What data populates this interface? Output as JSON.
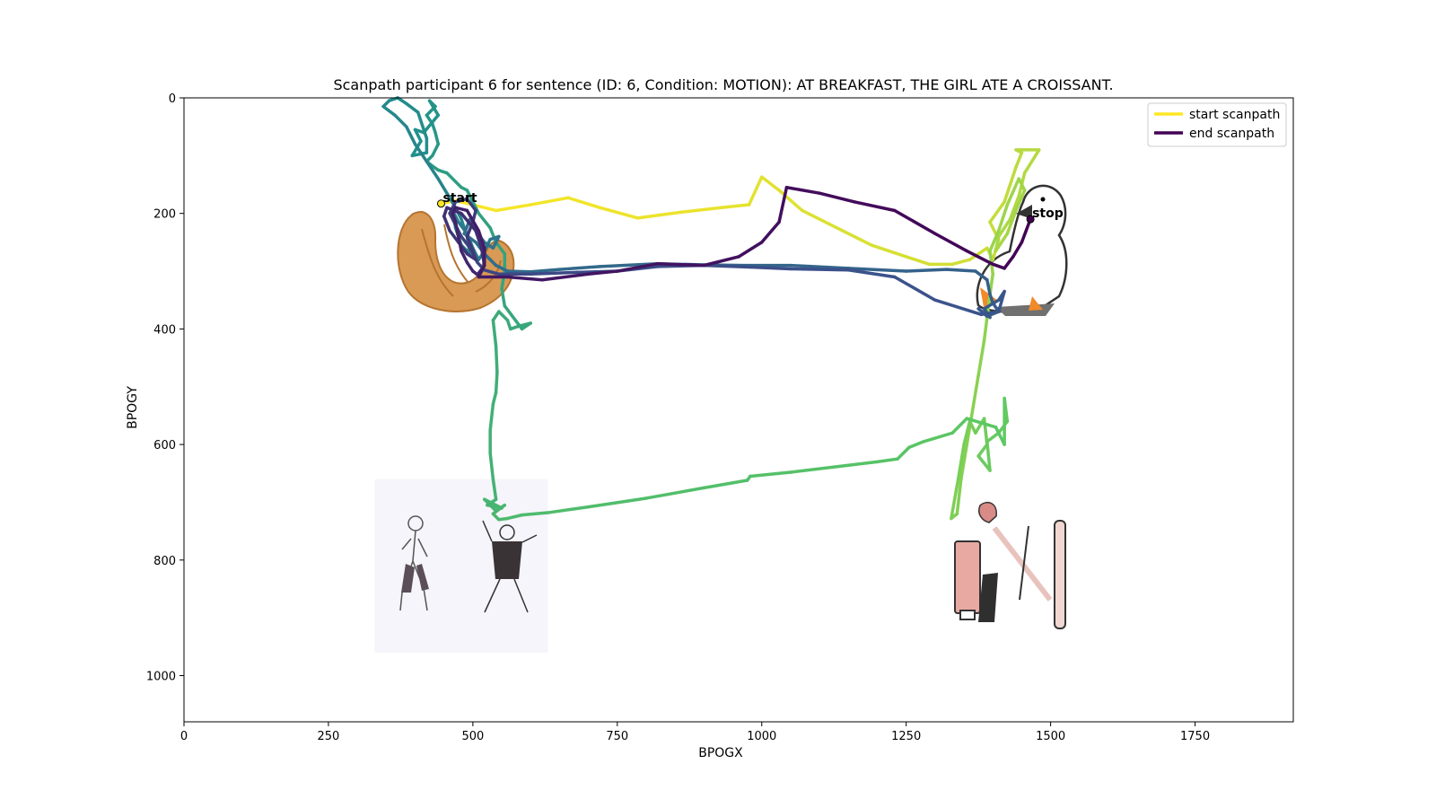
{
  "chart_data": {
    "type": "line",
    "title": "Scanpath participant 6 for sentence (ID: 6, Condition: MOTION):  AT BREAKFAST, THE GIRL ATE A CROISSANT.",
    "xlabel": "BPOGX",
    "ylabel": "BPOGY",
    "xlim": [
      0,
      1920
    ],
    "ylim": [
      1080,
      0
    ],
    "y_inverted": true,
    "xticks": [
      0,
      250,
      500,
      750,
      1000,
      1250,
      1500,
      1750
    ],
    "yticks": [
      0,
      200,
      400,
      600,
      800,
      1000
    ],
    "grid": false,
    "colormap": "viridis (yellow = start, purple = end)",
    "legend": {
      "placement": "upper right",
      "entries": [
        {
          "label": "start scanpath",
          "color": "#fde725"
        },
        {
          "label": "end scanpath",
          "color": "#440154"
        }
      ]
    },
    "annotations": [
      {
        "text": "start",
        "x": 445,
        "y": 183
      },
      {
        "text": "stop",
        "x": 1465,
        "y": 210
      }
    ],
    "stimuli": [
      {
        "name": "croissant",
        "x": [
          380,
          560
        ],
        "y": [
          185,
          370
        ]
      },
      {
        "name": "duck",
        "x": [
          1370,
          1570
        ],
        "y": [
          140,
          370
        ]
      },
      {
        "name": "dancers",
        "x": [
          330,
          630
        ],
        "y": [
          660,
          960
        ]
      },
      {
        "name": "makeup",
        "x": [
          1320,
          1620
        ],
        "y": [
          660,
          960
        ]
      }
    ],
    "scanpath": [
      [
        445,
        183
      ],
      [
        470,
        178
      ],
      [
        500,
        185
      ],
      [
        540,
        195
      ],
      [
        600,
        185
      ],
      [
        665,
        173
      ],
      [
        720,
        190
      ],
      [
        785,
        208
      ],
      [
        860,
        198
      ],
      [
        930,
        190
      ],
      [
        978,
        185
      ],
      [
        1000,
        137
      ],
      [
        1030,
        160
      ],
      [
        1070,
        195
      ],
      [
        1130,
        225
      ],
      [
        1190,
        255
      ],
      [
        1250,
        275
      ],
      [
        1290,
        288
      ],
      [
        1330,
        288
      ],
      [
        1360,
        280
      ],
      [
        1390,
        260
      ],
      [
        1400,
        280
      ],
      [
        1410,
        245
      ],
      [
        1395,
        215
      ],
      [
        1420,
        180
      ],
      [
        1430,
        150
      ],
      [
        1440,
        120
      ],
      [
        1450,
        95
      ],
      [
        1440,
        90
      ],
      [
        1480,
        90
      ],
      [
        1455,
        130
      ],
      [
        1445,
        170
      ],
      [
        1430,
        210
      ],
      [
        1410,
        240
      ],
      [
        1405,
        265
      ],
      [
        1425,
        235
      ],
      [
        1440,
        195
      ],
      [
        1455,
        160
      ],
      [
        1445,
        140
      ],
      [
        1425,
        185
      ],
      [
        1410,
        230
      ],
      [
        1395,
        265
      ],
      [
        1400,
        305
      ],
      [
        1395,
        340
      ],
      [
        1390,
        380
      ],
      [
        1385,
        420
      ],
      [
        1375,
        480
      ],
      [
        1365,
        540
      ],
      [
        1355,
        600
      ],
      [
        1345,
        660
      ],
      [
        1338,
        720
      ],
      [
        1328,
        728
      ],
      [
        1340,
        660
      ],
      [
        1350,
        600
      ],
      [
        1360,
        560
      ],
      [
        1370,
        580
      ],
      [
        1385,
        555
      ],
      [
        1390,
        600
      ],
      [
        1375,
        620
      ],
      [
        1395,
        645
      ],
      [
        1390,
        595
      ],
      [
        1410,
        580
      ],
      [
        1425,
        560
      ],
      [
        1420,
        520
      ],
      [
        1420,
        600
      ],
      [
        1405,
        570
      ],
      [
        1355,
        555
      ],
      [
        1330,
        580
      ],
      [
        1280,
        595
      ],
      [
        1255,
        605
      ],
      [
        1235,
        625
      ],
      [
        1200,
        630
      ],
      [
        1150,
        636
      ],
      [
        1050,
        648
      ],
      [
        980,
        655
      ],
      [
        975,
        662
      ],
      [
        900,
        675
      ],
      [
        800,
        693
      ],
      [
        700,
        708
      ],
      [
        630,
        718
      ],
      [
        585,
        722
      ],
      [
        560,
        728
      ],
      [
        545,
        730
      ],
      [
        535,
        720
      ],
      [
        555,
        705
      ],
      [
        540,
        715
      ],
      [
        520,
        695
      ],
      [
        550,
        710
      ],
      [
        525,
        705
      ],
      [
        540,
        695
      ],
      [
        535,
        660
      ],
      [
        530,
        615
      ],
      [
        530,
        575
      ],
      [
        535,
        530
      ],
      [
        540,
        510
      ],
      [
        542,
        475
      ],
      [
        540,
        430
      ],
      [
        535,
        385
      ],
      [
        545,
        370
      ],
      [
        560,
        385
      ],
      [
        565,
        400
      ],
      [
        580,
        395
      ],
      [
        600,
        390
      ],
      [
        585,
        400
      ],
      [
        555,
        360
      ],
      [
        550,
        330
      ],
      [
        555,
        300
      ],
      [
        555,
        270
      ],
      [
        540,
        250
      ],
      [
        530,
        225
      ],
      [
        510,
        200
      ],
      [
        490,
        160
      ],
      [
        480,
        155
      ],
      [
        470,
        145
      ],
      [
        455,
        130
      ],
      [
        440,
        125
      ],
      [
        430,
        118
      ],
      [
        420,
        110
      ],
      [
        430,
        100
      ],
      [
        440,
        80
      ],
      [
        435,
        60
      ],
      [
        430,
        45
      ],
      [
        420,
        30
      ],
      [
        435,
        15
      ],
      [
        425,
        5
      ],
      [
        440,
        30
      ],
      [
        415,
        60
      ],
      [
        400,
        55
      ],
      [
        410,
        75
      ],
      [
        395,
        100
      ],
      [
        420,
        95
      ],
      [
        420,
        70
      ],
      [
        405,
        25
      ],
      [
        385,
        10
      ],
      [
        370,
        0
      ],
      [
        355,
        5
      ],
      [
        345,
        15
      ],
      [
        365,
        30
      ],
      [
        385,
        50
      ],
      [
        400,
        80
      ],
      [
        420,
        110
      ],
      [
        440,
        140
      ],
      [
        455,
        165
      ],
      [
        470,
        190
      ],
      [
        480,
        210
      ],
      [
        490,
        240
      ],
      [
        495,
        270
      ],
      [
        480,
        255
      ],
      [
        470,
        225
      ],
      [
        465,
        195
      ],
      [
        475,
        215
      ],
      [
        490,
        235
      ],
      [
        500,
        260
      ],
      [
        510,
        280
      ],
      [
        520,
        265
      ],
      [
        530,
        245
      ],
      [
        545,
        240
      ],
      [
        535,
        260
      ],
      [
        520,
        250
      ],
      [
        505,
        230
      ],
      [
        495,
        210
      ],
      [
        485,
        235
      ],
      [
        505,
        250
      ],
      [
        520,
        270
      ],
      [
        540,
        290
      ],
      [
        560,
        300
      ],
      [
        600,
        301
      ],
      [
        650,
        297
      ],
      [
        720,
        292
      ],
      [
        820,
        287
      ],
      [
        900,
        289
      ],
      [
        970,
        290
      ],
      [
        1050,
        290
      ],
      [
        1150,
        295
      ],
      [
        1250,
        300
      ],
      [
        1320,
        297
      ],
      [
        1370,
        300
      ],
      [
        1390,
        315
      ],
      [
        1395,
        340
      ],
      [
        1400,
        355
      ],
      [
        1410,
        370
      ],
      [
        1390,
        378
      ],
      [
        1375,
        365
      ],
      [
        1395,
        380
      ],
      [
        1385,
        365
      ],
      [
        1410,
        350
      ],
      [
        1420,
        335
      ],
      [
        1410,
        370
      ],
      [
        1380,
        375
      ],
      [
        1300,
        350
      ],
      [
        1230,
        310
      ],
      [
        1150,
        298
      ],
      [
        1050,
        296
      ],
      [
        980,
        293
      ],
      [
        900,
        290
      ],
      [
        820,
        292
      ],
      [
        750,
        300
      ],
      [
        680,
        302
      ],
      [
        600,
        305
      ],
      [
        545,
        305
      ],
      [
        520,
        298
      ],
      [
        508,
        285
      ],
      [
        495,
        260
      ],
      [
        480,
        240
      ],
      [
        470,
        220
      ],
      [
        460,
        200
      ],
      [
        470,
        180
      ],
      [
        490,
        175
      ],
      [
        505,
        195
      ],
      [
        500,
        215
      ],
      [
        490,
        240
      ],
      [
        500,
        265
      ],
      [
        505,
        280
      ],
      [
        490,
        270
      ],
      [
        475,
        250
      ],
      [
        460,
        230
      ],
      [
        450,
        205
      ],
      [
        455,
        190
      ],
      [
        480,
        200
      ],
      [
        505,
        230
      ],
      [
        515,
        260
      ],
      [
        520,
        290
      ],
      [
        508,
        306
      ],
      [
        500,
        300
      ],
      [
        490,
        285
      ],
      [
        480,
        265
      ],
      [
        475,
        240
      ],
      [
        470,
        215
      ],
      [
        465,
        200
      ],
      [
        470,
        190
      ],
      [
        490,
        195
      ],
      [
        510,
        230
      ],
      [
        520,
        260
      ],
      [
        520,
        290
      ],
      [
        510,
        310
      ],
      [
        560,
        310
      ],
      [
        620,
        315
      ],
      [
        700,
        305
      ],
      [
        750,
        300
      ],
      [
        820,
        287
      ],
      [
        900,
        290
      ],
      [
        960,
        275
      ],
      [
        1000,
        250
      ],
      [
        1030,
        215
      ],
      [
        1043,
        155
      ],
      [
        1100,
        165
      ],
      [
        1160,
        180
      ],
      [
        1230,
        195
      ],
      [
        1300,
        235
      ],
      [
        1355,
        265
      ],
      [
        1400,
        288
      ],
      [
        1420,
        295
      ],
      [
        1435,
        275
      ],
      [
        1450,
        250
      ],
      [
        1465,
        210
      ]
    ]
  }
}
